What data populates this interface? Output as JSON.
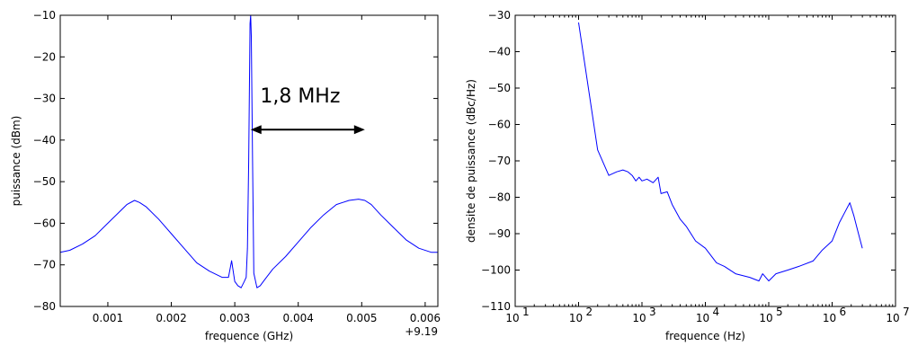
{
  "chart_data": [
    {
      "type": "line",
      "xlabel": "frequence (GHz)",
      "ylabel": "puissance (dBm)",
      "xlim": [
        0.00025,
        0.0062
      ],
      "ylim": [
        -80,
        -10
      ],
      "x_ticks": [
        0.001,
        0.002,
        0.003,
        0.004,
        0.005,
        0.006
      ],
      "x_tick_labels": [
        "0.001",
        "0.002",
        "0.003",
        "0.004",
        "0.005",
        "0.006"
      ],
      "x_offset_label": "+9.19",
      "y_ticks": [
        -80,
        -70,
        -60,
        -50,
        -40,
        -30,
        -20,
        -10
      ],
      "y_tick_labels": [
        "−80",
        "−70",
        "−60",
        "−50",
        "−40",
        "−30",
        "−20",
        "−10"
      ],
      "grid": false,
      "color": "#0000ff",
      "annotation": {
        "text": "1,8 MHz",
        "arrow_x": [
          0.00325,
          0.00505
        ],
        "arrow_y": -37.5,
        "text_x": 0.0034,
        "text_y": -31
      },
      "series": [
        {
          "x": [
            0.00025,
            0.0004,
            0.0006,
            0.0008,
            0.001,
            0.0012,
            0.0013,
            0.00142,
            0.0015,
            0.0016,
            0.0018,
            0.002,
            0.0022,
            0.0024,
            0.0026,
            0.0028,
            0.0029,
            0.00295,
            0.003,
            0.00305,
            0.0031,
            0.00315,
            0.00318,
            0.0032,
            0.00322,
            0.00324,
            0.00325,
            0.00326,
            0.00328,
            0.0033,
            0.00335,
            0.0034,
            0.00345,
            0.0035,
            0.0036,
            0.0038,
            0.004,
            0.0042,
            0.0044,
            0.0046,
            0.0048,
            0.00495,
            0.00505,
            0.00515,
            0.0053,
            0.0055,
            0.0057,
            0.0059,
            0.0061,
            0.0062
          ],
          "y": [
            -67,
            -66.5,
            -65,
            -63,
            -60,
            -57,
            -55.5,
            -54.5,
            -55,
            -56,
            -59,
            -62.5,
            -66,
            -69.5,
            -71.5,
            -73,
            -73,
            -69,
            -74,
            -75,
            -75.5,
            -74,
            -73,
            -66,
            -45,
            -12,
            -10,
            -15,
            -45,
            -72,
            -75.5,
            -75,
            -74,
            -73,
            -71,
            -68,
            -64.5,
            -61,
            -58,
            -55.5,
            -54.5,
            -54.2,
            -54.5,
            -55.5,
            -58,
            -61,
            -64,
            -66,
            -67,
            -67
          ]
        }
      ]
    },
    {
      "type": "line",
      "xlabel": "frequence (Hz)",
      "ylabel": "densite de puissance (dBc/Hz)",
      "xscale": "log",
      "xlim": [
        10,
        10000000
      ],
      "ylim": [
        -110,
        -30
      ],
      "x_ticks": [
        10,
        100,
        1000,
        10000,
        100000,
        1000000,
        10000000
      ],
      "x_tick_bases": [
        "10",
        "10",
        "10",
        "10",
        "10",
        "10",
        "10"
      ],
      "x_tick_exponents": [
        "1",
        "2",
        "3",
        "4",
        "5",
        "6",
        "7"
      ],
      "y_ticks": [
        -110,
        -100,
        -90,
        -80,
        -70,
        -60,
        -50,
        -40,
        -30
      ],
      "y_tick_labels": [
        "−110",
        "−100",
        "−90",
        "−80",
        "−70",
        "−60",
        "−50",
        "−40",
        "−30"
      ],
      "grid": false,
      "color": "#0000ff",
      "series": [
        {
          "x": [
            100,
            200,
            300,
            400,
            500,
            600,
            700,
            800,
            900,
            1000,
            1200,
            1500,
            1800,
            2000,
            2500,
            3000,
            4000,
            5000,
            7000,
            10000,
            15000,
            20000,
            30000,
            50000,
            70000,
            80000,
            100000,
            130000,
            200000,
            300000,
            500000,
            700000,
            1000000,
            1300000,
            1600000,
            1900000,
            2200000,
            2600000,
            3000000
          ],
          "y": [
            -32,
            -67,
            -74,
            -73,
            -72.5,
            -73,
            -74,
            -75.5,
            -74.5,
            -75.5,
            -75,
            -76,
            -74.5,
            -79,
            -78.5,
            -82,
            -86,
            -88,
            -92,
            -94,
            -98,
            -99,
            -101,
            -102,
            -103,
            -101,
            -103,
            -101,
            -100,
            -99,
            -97.5,
            -94.5,
            -92,
            -87,
            -84,
            -81.5,
            -85,
            -90,
            -94
          ]
        }
      ]
    }
  ]
}
